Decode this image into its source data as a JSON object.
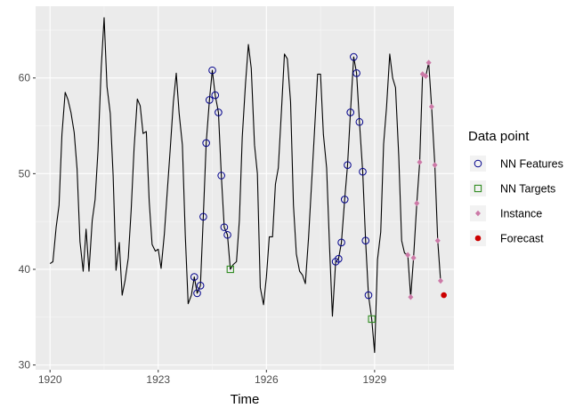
{
  "chart_data": {
    "type": "line",
    "xlabel": "Time",
    "ylabel": "",
    "xlim": [
      1919.6,
      1931.2
    ],
    "ylim": [
      29.5,
      67.5
    ],
    "x_ticks": [
      1920,
      1923,
      1926,
      1929
    ],
    "x_tick_labels": [
      "1920",
      "1923",
      "1926",
      "1929"
    ],
    "y_ticks": [
      30,
      40,
      50,
      60
    ],
    "y_tick_labels": [
      "30",
      "40",
      "50",
      "60"
    ],
    "grid": true,
    "legend_position": "right",
    "legend": {
      "title": "Data point",
      "entries": [
        {
          "label": "NN Features",
          "shape": "circle-open",
          "color": "#00008B"
        },
        {
          "label": "NN Targets",
          "shape": "square-open",
          "color": "#2E8B1F"
        },
        {
          "label": "Instance",
          "shape": "diamond",
          "color": "#CC79A7"
        },
        {
          "label": "Forecast",
          "shape": "circle-filled",
          "color": "#CC0000"
        }
      ]
    },
    "series": [
      {
        "legend_label": "",
        "color": "#000000",
        "points": [
          [
            1920.0,
            40.6
          ],
          [
            1920.08,
            40.8
          ],
          [
            1920.17,
            44.4
          ],
          [
            1920.25,
            46.7
          ],
          [
            1920.33,
            54.1
          ],
          [
            1920.42,
            58.5
          ],
          [
            1920.5,
            57.7
          ],
          [
            1920.58,
            56.4
          ],
          [
            1920.67,
            54.3
          ],
          [
            1920.75,
            50.5
          ],
          [
            1920.83,
            42.9
          ],
          [
            1920.92,
            39.8
          ],
          [
            1921.0,
            44.2
          ],
          [
            1921.08,
            39.8
          ],
          [
            1921.17,
            45.1
          ],
          [
            1921.25,
            47.3
          ],
          [
            1921.33,
            52.4
          ],
          [
            1921.42,
            61.1
          ],
          [
            1921.5,
            66.3
          ],
          [
            1921.58,
            59.1
          ],
          [
            1921.67,
            56.3
          ],
          [
            1921.75,
            49.8
          ],
          [
            1921.83,
            39.9
          ],
          [
            1921.92,
            42.8
          ],
          [
            1922.0,
            37.3
          ],
          [
            1922.08,
            38.8
          ],
          [
            1922.17,
            41.2
          ],
          [
            1922.25,
            46.2
          ],
          [
            1922.33,
            52.6
          ],
          [
            1922.42,
            57.8
          ],
          [
            1922.5,
            57.1
          ],
          [
            1922.58,
            54.2
          ],
          [
            1922.67,
            54.4
          ],
          [
            1922.75,
            47.1
          ],
          [
            1922.83,
            42.6
          ],
          [
            1922.92,
            41.9
          ],
          [
            1923.0,
            42.1
          ],
          [
            1923.08,
            40.1
          ],
          [
            1923.17,
            43.7
          ],
          [
            1923.25,
            48.1
          ],
          [
            1923.33,
            52.4
          ],
          [
            1923.42,
            57.5
          ],
          [
            1923.5,
            60.5
          ],
          [
            1923.58,
            56.3
          ],
          [
            1923.67,
            53.0
          ],
          [
            1923.75,
            43.6
          ],
          [
            1923.83,
            36.4
          ],
          [
            1923.92,
            37.3
          ],
          [
            1924.0,
            39.2
          ],
          [
            1924.08,
            37.5
          ],
          [
            1924.17,
            38.3
          ],
          [
            1924.25,
            45.5
          ],
          [
            1924.33,
            53.2
          ],
          [
            1924.42,
            57.7
          ],
          [
            1924.5,
            60.8
          ],
          [
            1924.58,
            58.2
          ],
          [
            1924.67,
            56.4
          ],
          [
            1924.75,
            49.8
          ],
          [
            1924.83,
            44.4
          ],
          [
            1924.92,
            43.6
          ],
          [
            1925.0,
            40.0
          ],
          [
            1925.08,
            40.5
          ],
          [
            1925.17,
            40.8
          ],
          [
            1925.25,
            45.1
          ],
          [
            1925.33,
            53.8
          ],
          [
            1925.42,
            59.4
          ],
          [
            1925.5,
            63.5
          ],
          [
            1925.58,
            61.0
          ],
          [
            1925.67,
            53.0
          ],
          [
            1925.75,
            50.0
          ],
          [
            1925.83,
            38.1
          ],
          [
            1925.92,
            36.3
          ],
          [
            1926.0,
            39.2
          ],
          [
            1926.08,
            43.4
          ],
          [
            1926.17,
            43.4
          ],
          [
            1926.25,
            48.9
          ],
          [
            1926.33,
            50.6
          ],
          [
            1926.42,
            56.8
          ],
          [
            1926.5,
            62.5
          ],
          [
            1926.58,
            62.0
          ],
          [
            1926.67,
            57.5
          ],
          [
            1926.75,
            46.7
          ],
          [
            1926.83,
            41.6
          ],
          [
            1926.92,
            39.8
          ],
          [
            1927.0,
            39.4
          ],
          [
            1927.08,
            38.5
          ],
          [
            1927.17,
            43.4
          ],
          [
            1927.25,
            48.8
          ],
          [
            1927.33,
            54.2
          ],
          [
            1927.42,
            60.4
          ],
          [
            1927.5,
            60.4
          ],
          [
            1927.58,
            54.1
          ],
          [
            1927.67,
            50.6
          ],
          [
            1927.75,
            42.4
          ],
          [
            1927.83,
            35.1
          ],
          [
            1927.92,
            40.8
          ],
          [
            1928.0,
            41.1
          ],
          [
            1928.08,
            42.8
          ],
          [
            1928.17,
            47.3
          ],
          [
            1928.25,
            50.9
          ],
          [
            1928.33,
            56.4
          ],
          [
            1928.42,
            62.2
          ],
          [
            1928.5,
            60.5
          ],
          [
            1928.58,
            55.4
          ],
          [
            1928.67,
            50.2
          ],
          [
            1928.75,
            43.0
          ],
          [
            1928.83,
            37.3
          ],
          [
            1928.92,
            34.8
          ],
          [
            1929.0,
            31.3
          ],
          [
            1929.08,
            41.0
          ],
          [
            1929.17,
            43.9
          ],
          [
            1929.25,
            53.1
          ],
          [
            1929.33,
            56.9
          ],
          [
            1929.42,
            62.5
          ],
          [
            1929.5,
            60.0
          ],
          [
            1929.58,
            59.0
          ],
          [
            1929.67,
            51.8
          ],
          [
            1929.75,
            43.0
          ],
          [
            1929.83,
            41.7
          ],
          [
            1929.92,
            41.5
          ],
          [
            1930.0,
            37.1
          ],
          [
            1930.08,
            41.2
          ],
          [
            1930.17,
            46.9
          ],
          [
            1930.25,
            51.2
          ],
          [
            1930.33,
            60.4
          ],
          [
            1930.42,
            60.2
          ],
          [
            1930.5,
            61.6
          ],
          [
            1930.58,
            57.0
          ],
          [
            1930.67,
            50.9
          ],
          [
            1930.75,
            43.0
          ],
          [
            1930.83,
            38.8
          ]
        ]
      }
    ],
    "point_layers": [
      {
        "legend_label": "NN Features",
        "shape": "circle-open",
        "color": "#00008B",
        "points": [
          [
            1924.0,
            39.2
          ],
          [
            1924.08,
            37.5
          ],
          [
            1924.17,
            38.3
          ],
          [
            1924.25,
            45.5
          ],
          [
            1924.33,
            53.2
          ],
          [
            1924.42,
            57.7
          ],
          [
            1924.5,
            60.8
          ],
          [
            1924.58,
            58.2
          ],
          [
            1924.67,
            56.4
          ],
          [
            1924.75,
            49.8
          ],
          [
            1924.83,
            44.4
          ],
          [
            1924.92,
            43.6
          ],
          [
            1927.92,
            40.8
          ],
          [
            1928.0,
            41.1
          ],
          [
            1928.08,
            42.8
          ],
          [
            1928.17,
            47.3
          ],
          [
            1928.25,
            50.9
          ],
          [
            1928.33,
            56.4
          ],
          [
            1928.42,
            62.2
          ],
          [
            1928.5,
            60.5
          ],
          [
            1928.58,
            55.4
          ],
          [
            1928.67,
            50.2
          ],
          [
            1928.75,
            43.0
          ],
          [
            1928.83,
            37.3
          ]
        ]
      },
      {
        "legend_label": "NN Targets",
        "shape": "square-open",
        "color": "#2E8B1F",
        "points": [
          [
            1925.0,
            40.0
          ],
          [
            1928.92,
            34.8
          ]
        ]
      },
      {
        "legend_label": "Instance",
        "shape": "diamond",
        "color": "#CC79A7",
        "points": [
          [
            1929.92,
            41.5
          ],
          [
            1930.0,
            37.1
          ],
          [
            1930.08,
            41.2
          ],
          [
            1930.17,
            46.9
          ],
          [
            1930.25,
            51.2
          ],
          [
            1930.33,
            60.4
          ],
          [
            1930.42,
            60.2
          ],
          [
            1930.5,
            61.6
          ],
          [
            1930.58,
            57.0
          ],
          [
            1930.67,
            50.9
          ],
          [
            1930.75,
            43.0
          ],
          [
            1930.83,
            38.8
          ]
        ]
      },
      {
        "legend_label": "Forecast",
        "shape": "circle-filled",
        "color": "#CC0000",
        "points": [
          [
            1930.92,
            37.3
          ]
        ]
      }
    ]
  }
}
